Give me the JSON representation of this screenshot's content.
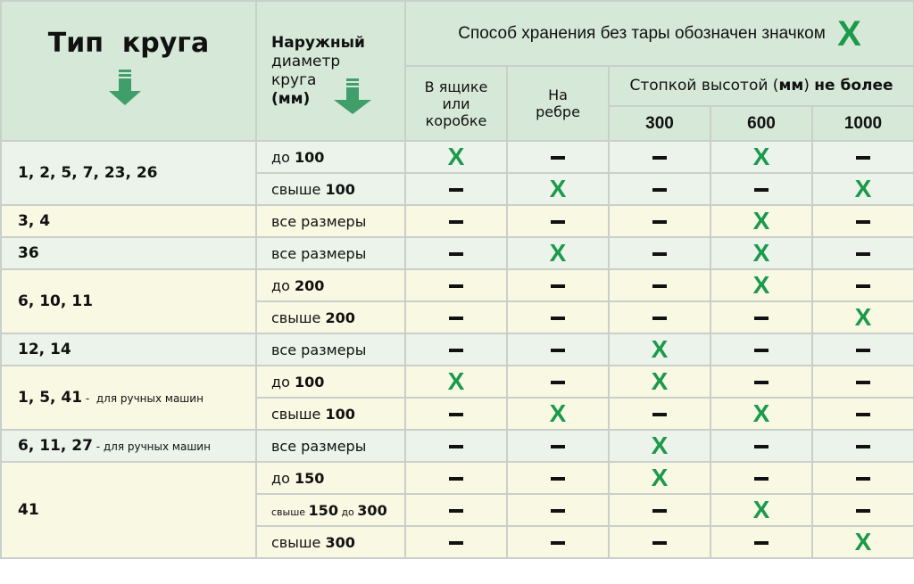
{
  "header": {
    "type_title": "Тип  круга",
    "diameter": {
      "line1": "Наружный",
      "line2": "диаметр",
      "line3": "круга",
      "unit": "(мм)"
    },
    "storage_note": "Способ хранения без тары обозначен значком",
    "storage_icon": "x-mark-icon",
    "col_box": "В ящике или коробке",
    "col_edge": "На ребре",
    "stack": {
      "prefix": "Стопкой высотой (",
      "unit": "мм",
      "mid": ") ",
      "bold": "не более"
    },
    "heights": [
      "300",
      "600",
      "1000"
    ]
  },
  "colors": {
    "header_bg": "#d6e8d8",
    "green_row": "#ebf3ea",
    "yellow_row": "#f8f8e3",
    "mark": "#1a9a4a",
    "arrow": "#3f9e6a"
  },
  "groups": [
    {
      "type": "1, 2, 5, 7, 23, 26",
      "note": "",
      "shade": "green",
      "rows": [
        {
          "size": [
            {
              "t": "до "
            },
            {
              "t": "100",
              "b": true
            }
          ],
          "marks": [
            1,
            0,
            0,
            1,
            0
          ]
        },
        {
          "size": [
            {
              "t": "свыше "
            },
            {
              "t": "100",
              "b": true
            }
          ],
          "marks": [
            0,
            1,
            0,
            0,
            1
          ]
        }
      ]
    },
    {
      "type": "3, 4",
      "note": "",
      "shade": "yellow",
      "rows": [
        {
          "size": [
            {
              "t": "все размеры"
            }
          ],
          "marks": [
            0,
            0,
            0,
            1,
            0
          ]
        }
      ]
    },
    {
      "type": "36",
      "note": "",
      "shade": "green",
      "rows": [
        {
          "size": [
            {
              "t": "все размеры"
            }
          ],
          "marks": [
            0,
            1,
            0,
            1,
            0
          ]
        }
      ]
    },
    {
      "type": "6, 10, 11",
      "note": "",
      "shade": "yellow",
      "rows": [
        {
          "size": [
            {
              "t": "до "
            },
            {
              "t": "200",
              "b": true
            }
          ],
          "marks": [
            0,
            0,
            0,
            1,
            0
          ]
        },
        {
          "size": [
            {
              "t": "свыше "
            },
            {
              "t": "200",
              "b": true
            }
          ],
          "marks": [
            0,
            0,
            0,
            0,
            1
          ]
        }
      ]
    },
    {
      "type": "12, 14",
      "note": "",
      "shade": "green",
      "rows": [
        {
          "size": [
            {
              "t": "все размеры"
            }
          ],
          "marks": [
            0,
            0,
            1,
            0,
            0
          ]
        }
      ]
    },
    {
      "type": "1, 5, 41",
      "note": " -  для ручных машин",
      "shade": "yellow",
      "rows": [
        {
          "size": [
            {
              "t": "до "
            },
            {
              "t": "100",
              "b": true
            }
          ],
          "marks": [
            1,
            0,
            1,
            0,
            0
          ]
        },
        {
          "size": [
            {
              "t": "свыше "
            },
            {
              "t": "100",
              "b": true
            }
          ],
          "marks": [
            0,
            1,
            0,
            1,
            0
          ]
        }
      ]
    },
    {
      "type": "6, 11, 27",
      "note": " - для ручных машин",
      "shade": "green",
      "rows": [
        {
          "size": [
            {
              "t": "все размеры"
            }
          ],
          "marks": [
            0,
            0,
            1,
            0,
            0
          ]
        }
      ]
    },
    {
      "type": "41",
      "note": "",
      "shade": "yellow",
      "rows": [
        {
          "size": [
            {
              "t": "до "
            },
            {
              "t": "150",
              "b": true
            }
          ],
          "marks": [
            0,
            0,
            1,
            0,
            0
          ]
        },
        {
          "size": [
            {
              "t": "свыше ",
              "s": true
            },
            {
              "t": "150",
              "b": true
            },
            {
              "t": " до ",
              "s": true
            },
            {
              "t": "300",
              "b": true
            }
          ],
          "marks": [
            0,
            0,
            0,
            1,
            0
          ]
        },
        {
          "size": [
            {
              "t": "свыше "
            },
            {
              "t": "300",
              "b": true
            }
          ],
          "marks": [
            0,
            0,
            0,
            0,
            1
          ]
        }
      ]
    }
  ]
}
